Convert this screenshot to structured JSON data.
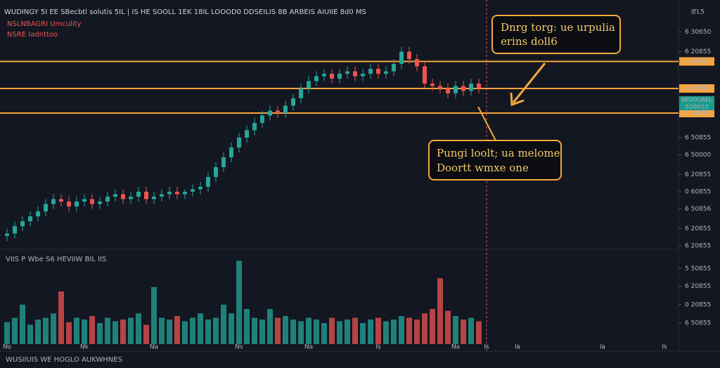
{
  "header": {
    "line1": "WUDINGY 5I EE SBecbtl solutis 5IL  |  IS  HE SOOLL 1EK 18IL LOOOD0 DDSEILIS 8B ARBEIS AIUIIE 8d0 MS",
    "line2": "NSLNBAGRI  Umculity",
    "line3": "NSRE Iadnttoo",
    "corner": "IEL5"
  },
  "volume_header": "VIIS P Wbe S6 HEVIIW BIL IIS",
  "footer": "WUSIIUIS  WE HOGLO AUKWHNES",
  "callouts": [
    {
      "lines": [
        "Dnrg torg: ue urpulia",
        "erins doll6"
      ]
    },
    {
      "lines": [
        "Pungi loolt; ua melome",
        "Doortt wmxe one"
      ]
    }
  ],
  "last_price_label": [
    "6EUOOAEL",
    "1O0O10"
  ],
  "chart_data": {
    "type": "candlestick",
    "open": [
      4,
      5,
      8,
      10,
      12,
      14,
      17,
      19,
      18,
      16,
      18,
      19,
      17,
      18,
      20,
      21,
      19,
      20,
      22,
      19,
      20,
      21,
      22,
      21,
      22,
      23,
      24,
      28,
      32,
      36,
      40,
      44,
      47,
      50,
      53,
      55,
      54,
      57,
      60,
      64,
      67,
      69,
      70,
      68,
      70,
      71,
      69,
      70,
      72,
      70,
      71,
      74,
      79,
      76,
      73,
      66,
      65,
      64,
      62,
      65,
      63,
      66
    ],
    "close": [
      5,
      8,
      10,
      12,
      14,
      17,
      19,
      18,
      16,
      18,
      19,
      17,
      18,
      20,
      21,
      19,
      20,
      22,
      19,
      20,
      21,
      22,
      21,
      22,
      23,
      24,
      28,
      32,
      36,
      40,
      44,
      47,
      50,
      53,
      55,
      54,
      57,
      60,
      64,
      67,
      69,
      70,
      68,
      70,
      71,
      69,
      70,
      72,
      70,
      71,
      74,
      79,
      76,
      73,
      66,
      65,
      64,
      62,
      65,
      63,
      66,
      64
    ],
    "high": [
      7,
      10,
      12,
      14,
      16,
      19,
      21,
      21,
      20,
      20,
      21,
      21,
      20,
      22,
      23,
      23,
      22,
      24,
      24,
      22,
      23,
      24,
      24,
      23,
      25,
      26,
      30,
      34,
      38,
      42,
      46,
      49,
      52,
      55,
      57,
      57,
      59,
      62,
      66,
      69,
      71,
      72,
      72,
      72,
      73,
      73,
      72,
      74,
      74,
      73,
      76,
      81,
      81,
      78,
      75,
      68,
      67,
      66,
      67,
      67,
      68,
      68
    ],
    "low": [
      2,
      3,
      6,
      8,
      10,
      12,
      15,
      16,
      14,
      14,
      16,
      15,
      15,
      16,
      18,
      17,
      17,
      18,
      17,
      17,
      18,
      19,
      19,
      19,
      20,
      21,
      22,
      26,
      30,
      34,
      38,
      42,
      45,
      48,
      51,
      52,
      52,
      55,
      58,
      62,
      65,
      67,
      66,
      66,
      68,
      67,
      67,
      68,
      68,
      68,
      69,
      72,
      74,
      71,
      64,
      63,
      62,
      60,
      60,
      61,
      61,
      62
    ],
    "volume": [
      25,
      30,
      45,
      22,
      28,
      30,
      35,
      60,
      25,
      30,
      28,
      32,
      24,
      30,
      26,
      28,
      30,
      35,
      22,
      65,
      30,
      28,
      32,
      26,
      30,
      35,
      28,
      30,
      45,
      35,
      95,
      40,
      30,
      28,
      40,
      30,
      32,
      28,
      26,
      30,
      28,
      24,
      30,
      26,
      28,
      30,
      24,
      28,
      30,
      26,
      28,
      32,
      30,
      28,
      35,
      40,
      75,
      38,
      32,
      28,
      30,
      26
    ],
    "ylim": [
      0,
      100
    ],
    "vlim": [
      0,
      100
    ],
    "yticks": [
      {
        "value": 87,
        "label": "6 30650"
      },
      {
        "value": 79,
        "label": "6 20855"
      },
      {
        "value": 44,
        "label": "6 50855"
      },
      {
        "value": 37,
        "label": "6 50000"
      },
      {
        "value": 29,
        "label": "6 20855"
      },
      {
        "value": 22,
        "label": "0 60855"
      },
      {
        "value": 15,
        "label": "6 50856"
      },
      {
        "value": 7,
        "label": "6 20855"
      },
      {
        "value": 0,
        "label": "6 20655"
      }
    ],
    "vticks": [
      {
        "value": 86,
        "label": "5 50855"
      },
      {
        "value": 66,
        "label": "6 20855"
      },
      {
        "value": 45,
        "label": "0 20855"
      },
      {
        "value": 24,
        "label": "6 50855"
      }
    ],
    "levels": [
      {
        "value": 75,
        "label": "1 0096S"
      },
      {
        "value": 64,
        "label": "1 08990"
      },
      {
        "value": 54,
        "label": "2 16059"
      }
    ],
    "xticks": [
      {
        "value": 0,
        "label": "No"
      },
      {
        "value": 10,
        "label": "Nk"
      },
      {
        "value": 19,
        "label": "Na"
      },
      {
        "value": 30,
        "label": "Ns"
      },
      {
        "value": 39,
        "label": "Na"
      },
      {
        "value": 48,
        "label": "Is"
      },
      {
        "value": 58,
        "label": "Na"
      },
      {
        "value": 62,
        "label": "Is"
      },
      {
        "value": 66,
        "label": "Ia"
      },
      {
        "value": 77,
        "label": "Ia"
      },
      {
        "value": 85,
        "label": "Is"
      }
    ],
    "up_color": "#26a69a",
    "down_color": "#ef5350",
    "level_color": "#f7a33b"
  }
}
